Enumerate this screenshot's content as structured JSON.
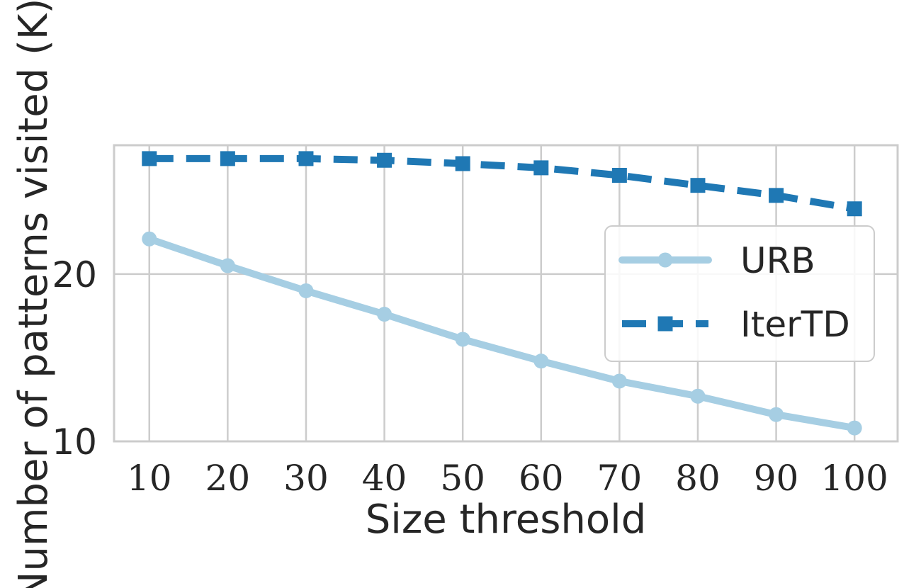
{
  "chart_data": {
    "type": "line",
    "xlabel": "Size threshold",
    "ylabel": "Number of patterns visited (K)",
    "x": [
      10,
      20,
      30,
      40,
      50,
      60,
      70,
      80,
      90,
      100
    ],
    "xticks": [
      "10",
      "20",
      "30",
      "40",
      "50",
      "60",
      "70",
      "80",
      "90",
      "100"
    ],
    "yticks": [
      "10",
      "20"
    ],
    "ylim": [
      10,
      27.7
    ],
    "xlim": [
      5.5,
      105.5
    ],
    "grid": true,
    "legend_position": "center-right",
    "series": [
      {
        "name": "URB",
        "values": [
          22.1,
          20.5,
          19.0,
          17.6,
          16.1,
          14.8,
          13.6,
          12.7,
          11.6,
          10.8
        ],
        "color": "#a6cee3",
        "style": "solid",
        "marker": "circle"
      },
      {
        "name": "IterTD",
        "values": [
          26.9,
          26.9,
          26.9,
          26.8,
          26.6,
          26.35,
          25.9,
          25.3,
          24.7,
          23.9
        ],
        "color": "#1f78b4",
        "style": "dashed",
        "marker": "square"
      }
    ]
  }
}
